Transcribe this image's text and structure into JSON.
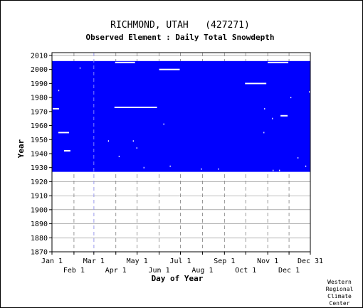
{
  "title": "RICHMOND, UTAH   (427271)",
  "subtitle": "Observed Element : Daily Total Snowdepth",
  "credit": [
    "Western",
    "Regional",
    "Climate",
    "Center"
  ],
  "colors": {
    "data": "#0000ff",
    "gap": "#ffffff",
    "grid": "#808080",
    "background": "#ffffff",
    "axis": "#000000"
  },
  "chart_data": {
    "type": "heatmap",
    "title": "RICHMOND, UTAH   (427271)",
    "subtitle": "Observed Element : Daily Total Snowdepth",
    "xlabel": "Day of Year",
    "ylabel": "Year",
    "xlim": [
      1,
      365
    ],
    "ylim": [
      1870,
      2012
    ],
    "x_ticks_top_row": [
      {
        "day": 1,
        "label": "Jan 1"
      },
      {
        "day": 60,
        "label": "Mar 1"
      },
      {
        "day": 121,
        "label": "May 1"
      },
      {
        "day": 182,
        "label": "Jul 1"
      },
      {
        "day": 244,
        "label": "Sep 1"
      },
      {
        "day": 305,
        "label": "Nov 1"
      },
      {
        "day": 365,
        "label": "Dec 31"
      }
    ],
    "x_ticks_bottom_row": [
      {
        "day": 32,
        "label": "Feb 1"
      },
      {
        "day": 91,
        "label": "Apr 1"
      },
      {
        "day": 152,
        "label": "Jun 1"
      },
      {
        "day": 213,
        "label": "Aug 1"
      },
      {
        "day": 274,
        "label": "Oct 1"
      },
      {
        "day": 335,
        "label": "Dec 1"
      }
    ],
    "y_ticks": [
      1870,
      1880,
      1890,
      1900,
      1910,
      1920,
      1930,
      1940,
      1950,
      1960,
      1970,
      1980,
      1990,
      2000,
      2010
    ],
    "grid": true,
    "series": [
      {
        "name": "",
        "year_start": 1928,
        "year_end": 2005,
        "day_start": 1,
        "day_end": 365
      }
    ],
    "missing_data": [
      {
        "year": 1973,
        "day_start": 89,
        "day_end": 149
      },
      {
        "year": 2000,
        "day_start": 152,
        "day_end": 181
      },
      {
        "year": 1990,
        "day_start": 273,
        "day_end": 303
      },
      {
        "year": 2005,
        "day_start": 90,
        "day_end": 118
      },
      {
        "year": 2005,
        "day_start": 305,
        "day_end": 334
      },
      {
        "year": 1955,
        "day_start": 10,
        "day_end": 25
      },
      {
        "year": 1942,
        "day_start": 18,
        "day_end": 27
      },
      {
        "year": 1972,
        "day_start": 2,
        "day_end": 11
      },
      {
        "year": 1967,
        "day_start": 323,
        "day_end": 333
      },
      {
        "year": 1985,
        "day_start": 10,
        "day_end": 11
      },
      {
        "year": 1980,
        "day_start": 337,
        "day_end": 338
      },
      {
        "year": 1944,
        "day_start": 120,
        "day_end": 121
      },
      {
        "year": 1961,
        "day_start": 158,
        "day_end": 159
      },
      {
        "year": 1931,
        "day_start": 167,
        "day_end": 168
      },
      {
        "year": 1930,
        "day_start": 130,
        "day_end": 131
      },
      {
        "year": 1929,
        "day_start": 211,
        "day_end": 212
      },
      {
        "year": 1928,
        "day_start": 312,
        "day_end": 313
      },
      {
        "year": 1929,
        "day_start": 235,
        "day_end": 236
      },
      {
        "year": 1938,
        "day_start": 95,
        "day_end": 96
      },
      {
        "year": 1949,
        "day_start": 80,
        "day_end": 81
      },
      {
        "year": 2001,
        "day_start": 40,
        "day_end": 41
      },
      {
        "year": 1972,
        "day_start": 300,
        "day_end": 301
      },
      {
        "year": 1965,
        "day_start": 311,
        "day_end": 312
      },
      {
        "year": 1955,
        "day_start": 299,
        "day_end": 300
      },
      {
        "year": 1937,
        "day_start": 347,
        "day_end": 348
      },
      {
        "year": 1931,
        "day_start": 358,
        "day_end": 359
      },
      {
        "year": 1984,
        "day_start": 363,
        "day_end": 364
      },
      {
        "year": 1949,
        "day_start": 115,
        "day_end": 116
      },
      {
        "year": 1928,
        "day_start": 321,
        "day_end": 322
      }
    ]
  }
}
